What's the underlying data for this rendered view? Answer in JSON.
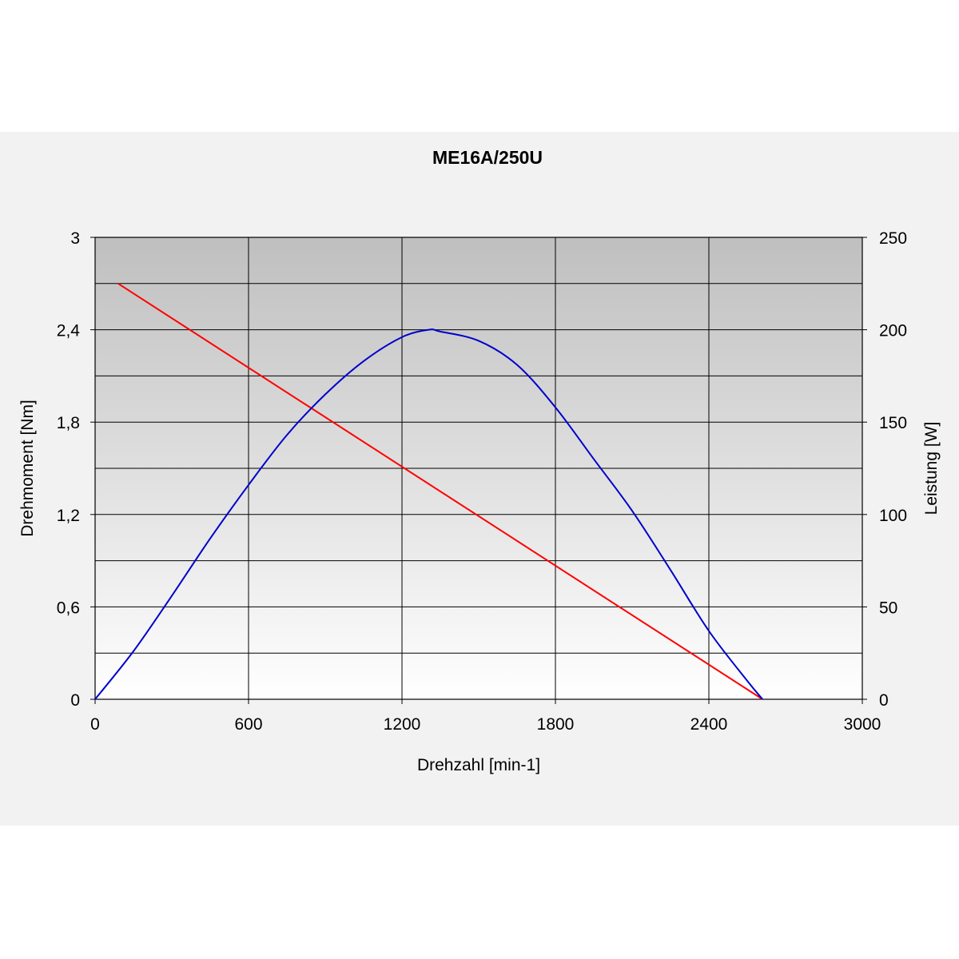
{
  "chart_data": {
    "type": "line",
    "title": "ME16A/250U",
    "xlabel": "Drehzahl [min-1]",
    "ylabel": "Drehmoment [Nm]",
    "y2label": "Leistung [W]",
    "xlim": [
      0,
      3000
    ],
    "ylim": [
      0,
      3
    ],
    "y2lim": [
      0,
      250
    ],
    "x_ticks": [
      0,
      600,
      1200,
      1800,
      2400,
      3000
    ],
    "x_tick_labels": [
      "0",
      "600",
      "1200",
      "1800",
      "2400",
      "3000"
    ],
    "y_ticks": [
      0,
      0.6,
      1.2,
      1.8,
      2.4,
      3
    ],
    "y_tick_labels": [
      "0",
      "0,6",
      "1,2",
      "1,8",
      "2,4",
      "3"
    ],
    "y2_ticks": [
      0,
      50,
      100,
      150,
      200,
      250
    ],
    "y2_tick_labels": [
      "0",
      "50",
      "100",
      "150",
      "200",
      "250"
    ],
    "grid": true,
    "series": [
      {
        "axis": "left",
        "color": "#ff0000",
        "x": [
          90,
          2610
        ],
        "y": [
          2.7,
          0
        ]
      },
      {
        "axis": "right",
        "color": "#0000cc",
        "x": [
          0,
          150,
          300,
          450,
          600,
          750,
          900,
          1050,
          1200,
          1305,
          1350,
          1500,
          1650,
          1800,
          1950,
          2100,
          2250,
          2400,
          2550,
          2610
        ],
        "y": [
          0,
          26,
          56,
          87,
          116,
          143,
          165,
          183,
          196,
          200,
          199,
          194,
          181,
          158,
          130,
          102,
          70,
          37,
          10,
          0
        ]
      }
    ]
  }
}
